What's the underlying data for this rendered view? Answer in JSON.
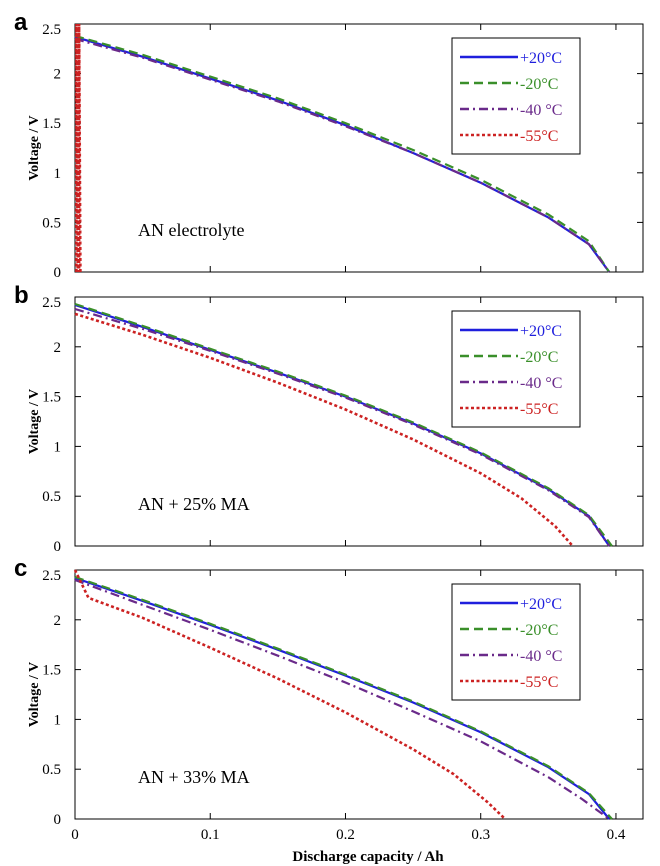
{
  "xlabel": "Discharge capacity / Ah",
  "chart_data": [
    {
      "type": "line",
      "panel": "a",
      "annotation": "AN electrolyte",
      "ylabel": "Voltage / V",
      "xlim": [
        0,
        0.42
      ],
      "ylim": [
        0,
        2.5
      ],
      "x_ticks": [
        "0",
        "0.1",
        "0.2",
        "0.3",
        "0.4"
      ],
      "y_ticks": [
        "0",
        "0.5",
        "1",
        "1.5",
        "2",
        "2.5"
      ],
      "legend_position": "top-right",
      "series": [
        {
          "name": "+20°C",
          "color": "#1f1fdd",
          "dash": "solid",
          "x": [
            0,
            0.05,
            0.1,
            0.15,
            0.2,
            0.25,
            0.3,
            0.35,
            0.38,
            0.395
          ],
          "y": [
            2.37,
            2.17,
            1.95,
            1.73,
            1.48,
            1.2,
            0.9,
            0.55,
            0.28,
            0.0
          ]
        },
        {
          "name": "-20°C",
          "color": "#3a8f2a",
          "dash": "dash",
          "x": [
            0,
            0.05,
            0.1,
            0.15,
            0.2,
            0.25,
            0.3,
            0.35,
            0.38,
            0.395
          ],
          "y": [
            2.38,
            2.19,
            1.97,
            1.75,
            1.5,
            1.23,
            0.93,
            0.58,
            0.31,
            0.0
          ]
        },
        {
          "name": "-40 °C",
          "color": "#6a2a8a",
          "dash": "dashdot",
          "x": [
            0,
            0.05,
            0.1,
            0.15,
            0.2,
            0.25,
            0.3,
            0.35,
            0.38,
            0.395
          ],
          "y": [
            2.35,
            2.16,
            1.94,
            1.72,
            1.47,
            1.2,
            0.9,
            0.55,
            0.28,
            0.0
          ]
        },
        {
          "name": "-55°C",
          "color": "#cc2222",
          "dash": "dot",
          "x": [
            0.001,
            0.001,
            0.002,
            0.002,
            0.003,
            0.003,
            0.004
          ],
          "y": [
            0.0,
            2.5,
            0.0,
            2.5,
            0.0,
            2.5,
            0.0
          ]
        }
      ]
    },
    {
      "type": "line",
      "panel": "b",
      "annotation": "AN + 25% MA",
      "ylabel": "Voltage / V",
      "xlim": [
        0,
        0.42
      ],
      "ylim": [
        0,
        2.5
      ],
      "x_ticks": [
        "0",
        "0.1",
        "0.2",
        "0.3",
        "0.4"
      ],
      "y_ticks": [
        "0",
        "0.5",
        "1",
        "1.5",
        "2",
        "2.5"
      ],
      "legend_position": "top-right",
      "series": [
        {
          "name": "+20°C",
          "color": "#1f1fdd",
          "dash": "solid",
          "x": [
            0,
            0.05,
            0.1,
            0.15,
            0.2,
            0.25,
            0.3,
            0.35,
            0.38,
            0.395
          ],
          "y": [
            2.42,
            2.2,
            1.97,
            1.74,
            1.5,
            1.23,
            0.93,
            0.57,
            0.3,
            0.0
          ]
        },
        {
          "name": "-20°C",
          "color": "#3a8f2a",
          "dash": "dash",
          "x": [
            0,
            0.05,
            0.1,
            0.15,
            0.2,
            0.25,
            0.3,
            0.35,
            0.38,
            0.397
          ],
          "y": [
            2.43,
            2.21,
            1.98,
            1.75,
            1.51,
            1.24,
            0.94,
            0.58,
            0.31,
            0.0
          ]
        },
        {
          "name": "-40 °C",
          "color": "#6a2a8a",
          "dash": "dashdot",
          "x": [
            0,
            0.05,
            0.1,
            0.15,
            0.2,
            0.25,
            0.3,
            0.35,
            0.38,
            0.395
          ],
          "y": [
            2.38,
            2.18,
            1.96,
            1.73,
            1.49,
            1.22,
            0.92,
            0.56,
            0.29,
            0.0
          ]
        },
        {
          "name": "-55°C",
          "color": "#cc2222",
          "dash": "dot",
          "x": [
            0,
            0.05,
            0.1,
            0.15,
            0.2,
            0.25,
            0.3,
            0.33,
            0.355,
            0.368
          ],
          "y": [
            2.33,
            2.12,
            1.89,
            1.64,
            1.37,
            1.07,
            0.73,
            0.48,
            0.2,
            0.0
          ]
        }
      ]
    },
    {
      "type": "line",
      "panel": "c",
      "annotation": "AN + 33% MA",
      "ylabel": "Voltage / V",
      "xlim": [
        0,
        0.42
      ],
      "ylim": [
        0,
        2.5
      ],
      "x_ticks": [
        "0",
        "0.1",
        "0.2",
        "0.3",
        "0.4"
      ],
      "y_ticks": [
        "0",
        "0.5",
        "1",
        "1.5",
        "2",
        "2.5"
      ],
      "legend_position": "top-right",
      "series": [
        {
          "name": "+20°C",
          "color": "#1f1fdd",
          "dash": "solid",
          "x": [
            0,
            0.05,
            0.1,
            0.15,
            0.2,
            0.25,
            0.3,
            0.35,
            0.38,
            0.395
          ],
          "y": [
            2.42,
            2.19,
            1.95,
            1.7,
            1.44,
            1.17,
            0.87,
            0.52,
            0.25,
            0.0
          ]
        },
        {
          "name": "-20°C",
          "color": "#3a8f2a",
          "dash": "dash",
          "x": [
            0,
            0.05,
            0.1,
            0.15,
            0.2,
            0.25,
            0.3,
            0.35,
            0.38,
            0.397
          ],
          "y": [
            2.43,
            2.2,
            1.96,
            1.71,
            1.45,
            1.18,
            0.88,
            0.53,
            0.26,
            0.0
          ]
        },
        {
          "name": "-40 °C",
          "color": "#6a2a8a",
          "dash": "dashdot",
          "x": [
            0,
            0.05,
            0.1,
            0.15,
            0.2,
            0.25,
            0.3,
            0.35,
            0.375,
            0.395
          ],
          "y": [
            2.4,
            2.15,
            1.9,
            1.64,
            1.37,
            1.08,
            0.78,
            0.42,
            0.2,
            0.0
          ]
        },
        {
          "name": "-55°C",
          "color": "#cc2222",
          "dash": "dot",
          "x": [
            0,
            0.01,
            0.05,
            0.1,
            0.15,
            0.2,
            0.25,
            0.28,
            0.305,
            0.318
          ],
          "y": [
            2.5,
            2.22,
            2.02,
            1.72,
            1.41,
            1.07,
            0.7,
            0.45,
            0.17,
            0.0
          ]
        }
      ]
    }
  ]
}
